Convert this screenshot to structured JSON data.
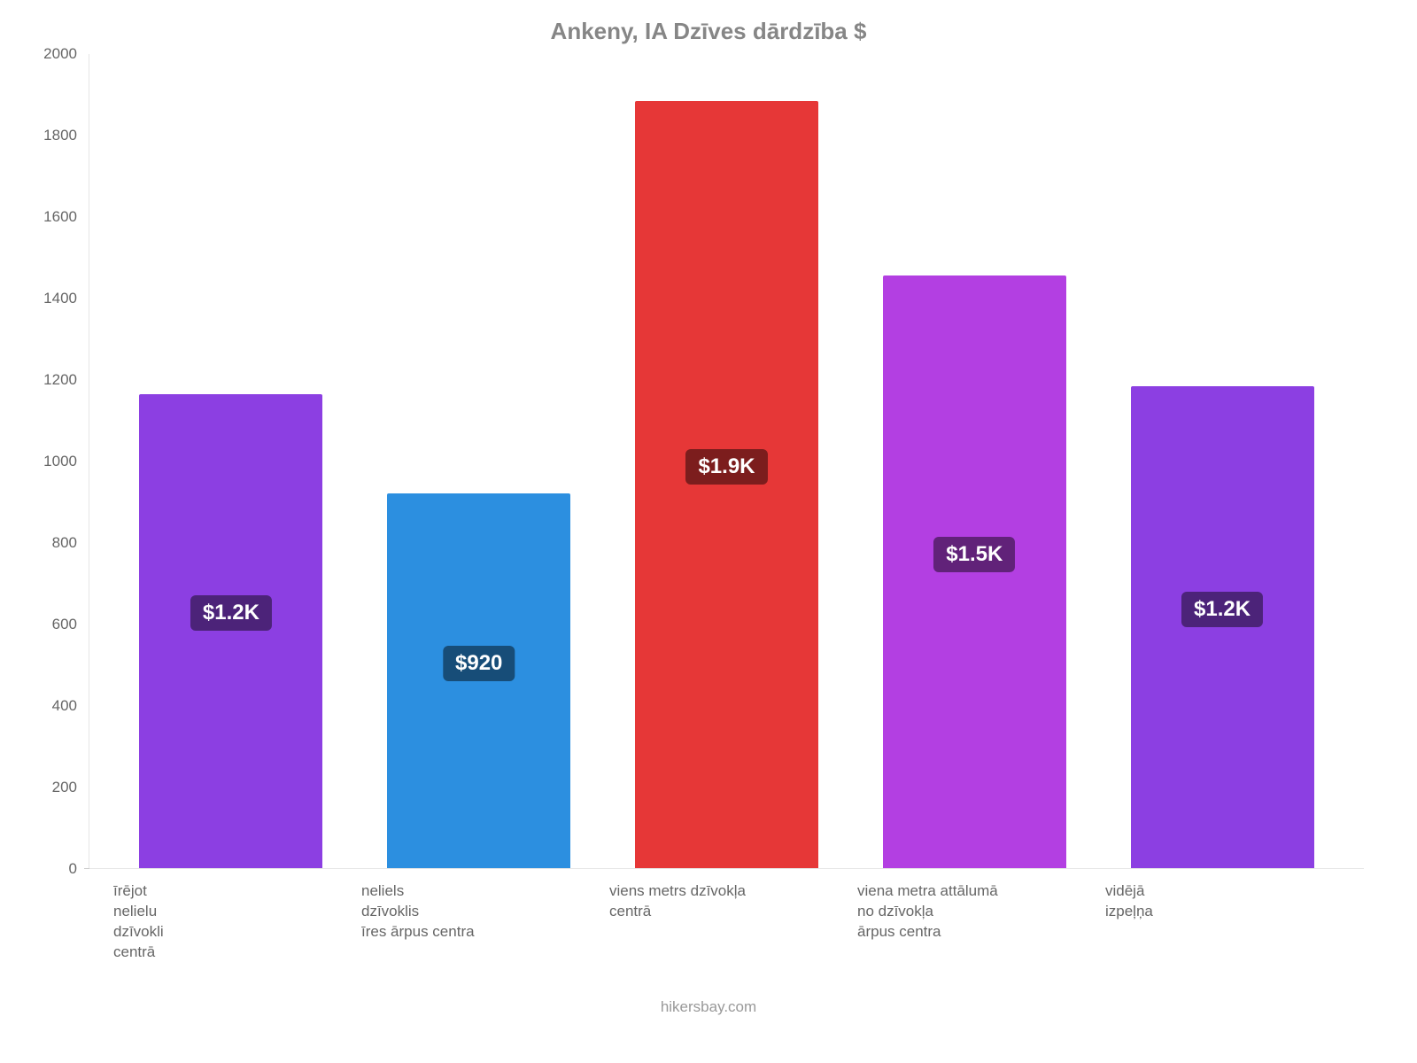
{
  "chart": {
    "type": "bar",
    "title": "Ankeny, IA Dzīves dārdzība $",
    "title_fontsize": 26,
    "title_color": "#868686",
    "background_color": "#ffffff",
    "axis_line_color": "#e6e6e6",
    "ylim_min": 0,
    "ylim_max": 2000,
    "ytick_step": 200,
    "yticks": [
      0,
      200,
      400,
      600,
      800,
      1000,
      1200,
      1400,
      1600,
      1800,
      2000
    ],
    "ytick_fontsize": 17,
    "ytick_color": "#666666",
    "bar_width_pct": 74,
    "xlabel_fontsize": 17,
    "xlabel_color": "#666666",
    "value_label_fontsize": 24,
    "value_label_color": "#ffffff",
    "attribution": "hikersbay.com",
    "attribution_fontsize": 17,
    "attribution_color": "#999999",
    "bars": [
      {
        "category_lines": [
          "īrējot",
          "nelielu",
          "dzīvokli",
          "centrā"
        ],
        "value": 1165,
        "display_label": "$1.2K",
        "bar_color": "#8c3fe2",
        "label_bg_color": "#4c2379",
        "label_bottom_pct": 50
      },
      {
        "category_lines": [
          "neliels",
          "dzīvoklis",
          "īres ārpus centra"
        ],
        "value": 920,
        "display_label": "$920",
        "bar_color": "#2c8fe0",
        "label_bg_color": "#174d78",
        "label_bottom_pct": 50
      },
      {
        "category_lines": [
          "viens metrs dzīvokļa",
          "centrā"
        ],
        "value": 1885,
        "display_label": "$1.9K",
        "bar_color": "#e63737",
        "label_bg_color": "#7c1d1d",
        "label_bottom_pct": 50
      },
      {
        "category_lines": [
          "viena metra attālumā",
          "no dzīvokļa",
          "ārpus centra"
        ],
        "value": 1455,
        "display_label": "$1.5K",
        "bar_color": "#b33fe2",
        "label_bg_color": "#612279",
        "label_bottom_pct": 50
      },
      {
        "category_lines": [
          "vidējā",
          "izpeļņa"
        ],
        "value": 1185,
        "display_label": "$1.2K",
        "bar_color": "#8c3fe2",
        "label_bg_color": "#4c2379",
        "label_bottom_pct": 50
      }
    ]
  }
}
